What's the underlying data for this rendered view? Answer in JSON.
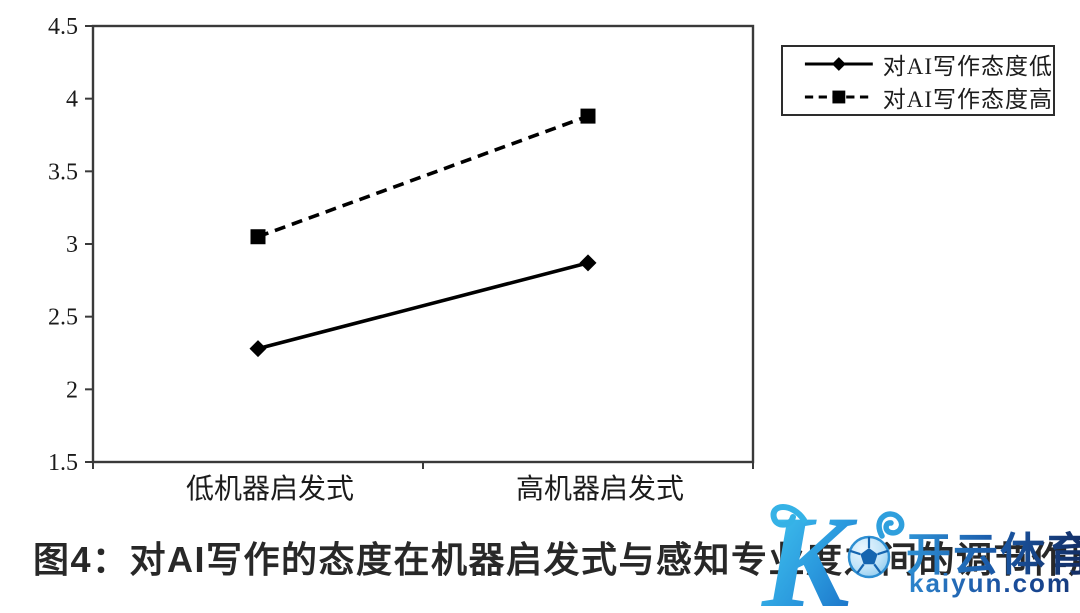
{
  "chart_data": {
    "type": "line",
    "title": "",
    "xlabel": "",
    "ylabel": "",
    "categories": [
      "低机器启发式",
      "高机器启发式"
    ],
    "series": [
      {
        "name": "对AI写作态度低",
        "values": [
          2.28,
          2.87
        ],
        "line_style": "solid",
        "marker": "diamond",
        "color": "#000000"
      },
      {
        "name": "对AI写作态度高",
        "values": [
          3.05,
          3.88
        ],
        "line_style": "dashed",
        "marker": "square",
        "color": "#000000"
      }
    ],
    "ylim": [
      1.5,
      4.5
    ],
    "yticks": [
      4.5,
      4,
      3.5,
      3,
      2.5,
      2,
      1.5
    ],
    "ytick_labels": [
      "4.5",
      "4",
      "3.5",
      "3",
      "2.5",
      "2",
      "1.5"
    ],
    "grid": false,
    "legend_position": "top-right-outside"
  },
  "caption": {
    "text": "图4：对AI写作的态度在机器启发式与感知专业度之间的调节作用"
  },
  "watermark": {
    "logo_letter": "K",
    "brand": "开云体育",
    "domain": "kaiyun.com",
    "colors": {
      "logo_light": "#45cdf2",
      "logo_dark": "#1767c1",
      "brand_dark": "#122a60",
      "brand_light": "#2f95d8"
    }
  },
  "colors": {
    "axis": "#3a3a3a",
    "series": "#000000",
    "text": "#1b1b1b",
    "caption": "#282828"
  }
}
